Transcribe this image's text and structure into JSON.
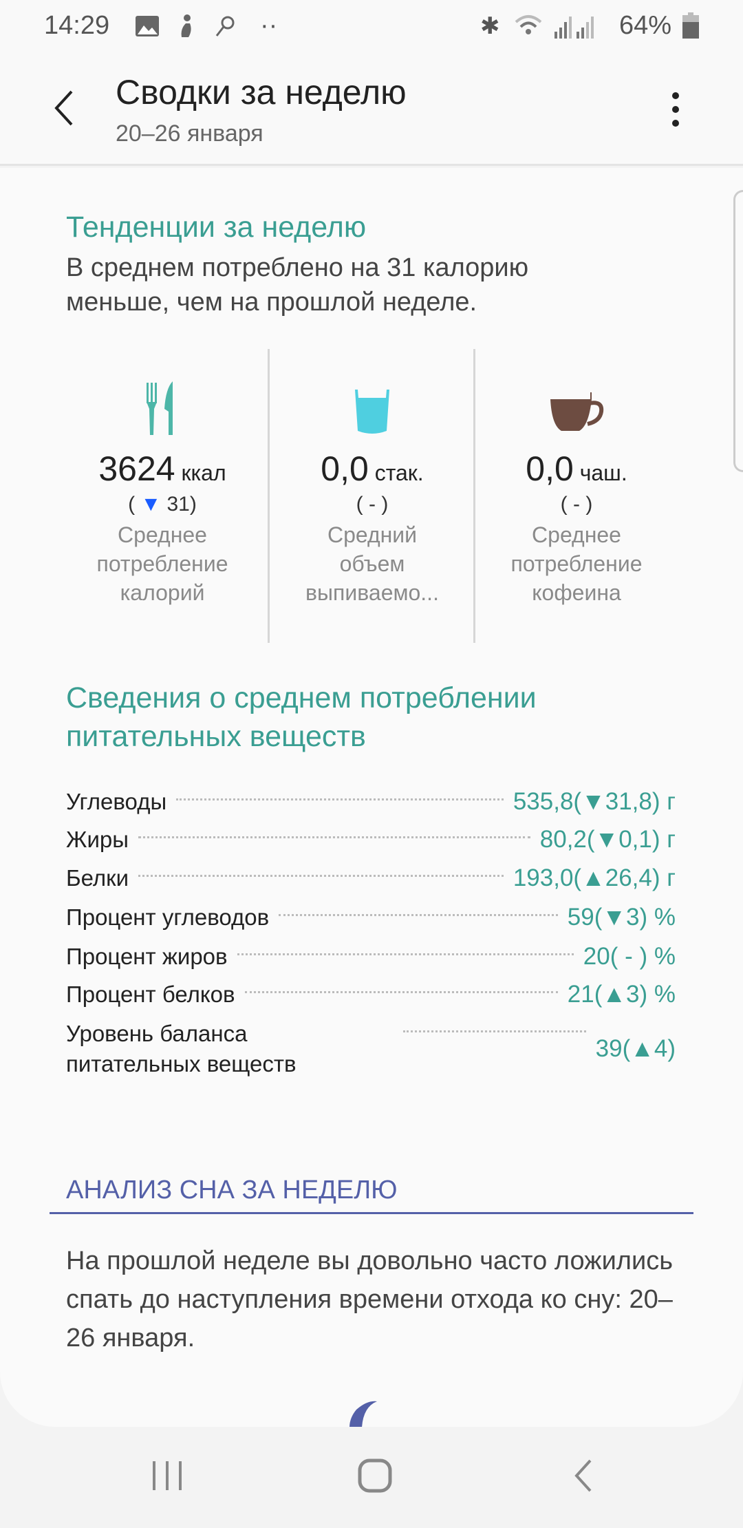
{
  "status_bar": {
    "time": "14:29",
    "battery": "64%",
    "icons": [
      "gallery-icon",
      "accessibility-icon",
      "search-icon",
      "more-dots-icon",
      "bluetooth-icon",
      "wifi-icon",
      "signal-icon",
      "signal-icon",
      "battery-icon"
    ]
  },
  "header": {
    "title": "Сводки за неделю",
    "subtitle": "20–26 января",
    "back_icon": "back-arrow-icon",
    "menu_icon": "more-vert-icon"
  },
  "trends": {
    "title": "Тенденции за неделю",
    "summary": "В среднем потреблено на 31 калорию меньше, чем на прошлой неделе.",
    "items": [
      {
        "icon": "fork-knife-icon",
        "value": "3624",
        "unit": "ккал",
        "delta_open": "(",
        "delta": "31",
        "delta_dir": "down",
        "delta_close": ")",
        "label": "Среднее потребление калорий",
        "color": "#4db6a8"
      },
      {
        "icon": "water-glass-icon",
        "value": "0,0",
        "unit": "стак.",
        "delta_open": "(",
        "delta": "-",
        "delta_close": ")",
        "label": "Средний объем выпиваемо...",
        "color": "#4fcfe0"
      },
      {
        "icon": "coffee-cup-icon",
        "value": "0,0",
        "unit": "чаш.",
        "delta_open": "(",
        "delta": "-",
        "delta_close": ")",
        "label": "Среднее потребление кофеина",
        "color": "#6d4c41"
      }
    ]
  },
  "nutrients": {
    "title": "Сведения о среднем потреблении питательных веществ",
    "rows": [
      {
        "name": "Углеводы",
        "value": "535,8(▼31,8) г"
      },
      {
        "name": "Жиры",
        "value": "80,2(▼0,1) г"
      },
      {
        "name": "Белки",
        "value": "193,0(▲26,4) г"
      },
      {
        "name": "Процент углеводов",
        "value": "59(▼3) %"
      },
      {
        "name": "Процент жиров",
        "value": "20( - ) %"
      },
      {
        "name": "Процент белков",
        "value": "21(▲3) %"
      },
      {
        "name": "Уровень баланса питательных веществ",
        "value": "39(▲4)"
      }
    ]
  },
  "sleep": {
    "title": "АНАЛИЗ СНА ЗА НЕДЕЛЮ",
    "text": "На прошлой неделе вы довольно часто ложились спать до наступления времени отхода ко сну: 20–26 января.",
    "icon": "moon-icon"
  },
  "colors": {
    "accent": "#3a9e92",
    "sleep": "#5460a8",
    "delta_down": "#1a5cff"
  },
  "navbar": {
    "icons": [
      "recent-apps-icon",
      "home-icon",
      "back-icon"
    ]
  }
}
